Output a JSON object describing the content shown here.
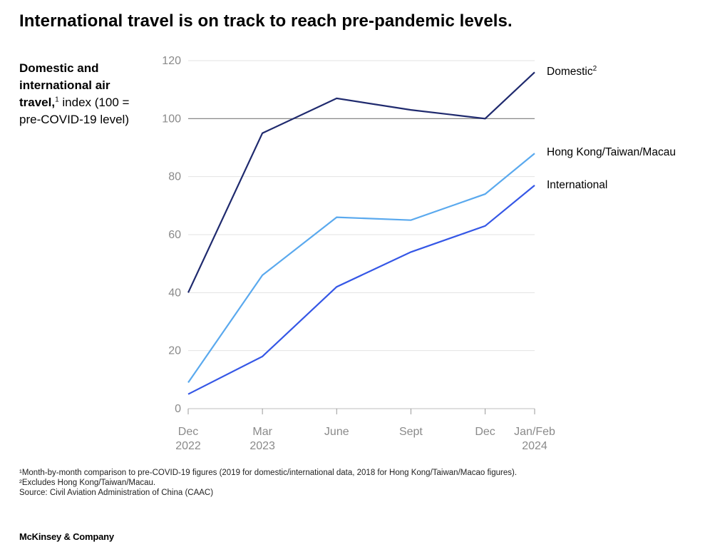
{
  "title": "International travel is on track to reach pre-pandemic levels.",
  "ylabel": {
    "bold": "Domestic and international air travel,",
    "sup": "1",
    "rest": " index (100 = pre-COVID-19 level)"
  },
  "footnotes": [
    "¹Month-by-month comparison to pre-COVID-19 figures (2019 for domestic/international data, 2018 for Hong Kong/Taiwan/Macao figures).",
    "²Excludes Hong Kong/Taiwan/Macau.",
    " Source: Civil Aviation Administration of China (CAAC)"
  ],
  "brand": "McKinsey & Company",
  "chart_data": {
    "type": "line",
    "title": "International travel is on track to reach pre-pandemic levels.",
    "ylabel": "Domestic and international air travel, index (100 = pre-COVID-19 level)",
    "ylim": [
      0,
      120
    ],
    "yticks": [
      0,
      20,
      40,
      60,
      80,
      100,
      120
    ],
    "reference_line": 100,
    "grid": true,
    "x": [
      0,
      3,
      6,
      9,
      12,
      14
    ],
    "categories": [
      {
        "line1": "Dec",
        "line2": "2022"
      },
      {
        "line1": "Mar",
        "line2": "2023"
      },
      {
        "line1": "June",
        "line2": ""
      },
      {
        "line1": "Sept",
        "line2": ""
      },
      {
        "line1": "Dec",
        "line2": ""
      },
      {
        "line1": "Jan/Feb",
        "line2": "2024"
      }
    ],
    "series": [
      {
        "name": "Domestic",
        "sup": "2",
        "color": "#1f2a6e",
        "values": [
          40,
          95,
          107,
          103,
          100,
          116
        ]
      },
      {
        "name": "Hong Kong/Taiwan/Macau",
        "sup": "",
        "color": "#5aa9ee",
        "values": [
          9,
          46,
          66,
          65,
          74,
          88
        ]
      },
      {
        "name": "International",
        "sup": "",
        "color": "#3557e6",
        "values": [
          5,
          18,
          42,
          54,
          63,
          77
        ]
      }
    ]
  }
}
